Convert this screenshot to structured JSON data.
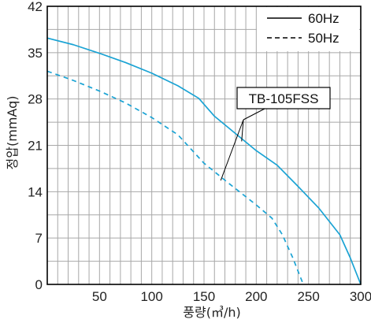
{
  "chart_data": {
    "type": "line",
    "xlabel": "풍량(㎥/h)",
    "ylabel": "정압(mmAq)",
    "xlim": [
      0,
      300
    ],
    "ylim": [
      0,
      42
    ],
    "x_ticks": [
      50,
      100,
      150,
      200,
      250,
      300
    ],
    "y_ticks": [
      0,
      7,
      14,
      21,
      28,
      35,
      42
    ],
    "x_grid_step": 10,
    "y_grid_step": 3.5,
    "grid": true,
    "legend_position": "top-right",
    "annotation": "TB-105FSS",
    "line_color": "#1aa3d4",
    "series": [
      {
        "name": "60Hz",
        "style": "solid",
        "x": [
          0,
          25,
          50,
          75,
          100,
          125,
          145,
          160,
          180,
          200,
          220,
          240,
          260,
          280,
          290,
          300
        ],
        "y": [
          37.2,
          36.2,
          34.9,
          33.5,
          31.9,
          30.0,
          28.1,
          25.4,
          22.8,
          20.2,
          18.0,
          14.8,
          11.5,
          7.5,
          4.0,
          0
        ]
      },
      {
        "name": "50Hz",
        "style": "dashed",
        "x": [
          0,
          25,
          50,
          75,
          100,
          125,
          150,
          175,
          200,
          215,
          225,
          235,
          245
        ],
        "y": [
          32.2,
          30.8,
          29.2,
          27.4,
          25.2,
          22.6,
          18.3,
          15.1,
          12.0,
          10.0,
          7.5,
          4.0,
          0
        ]
      }
    ]
  }
}
